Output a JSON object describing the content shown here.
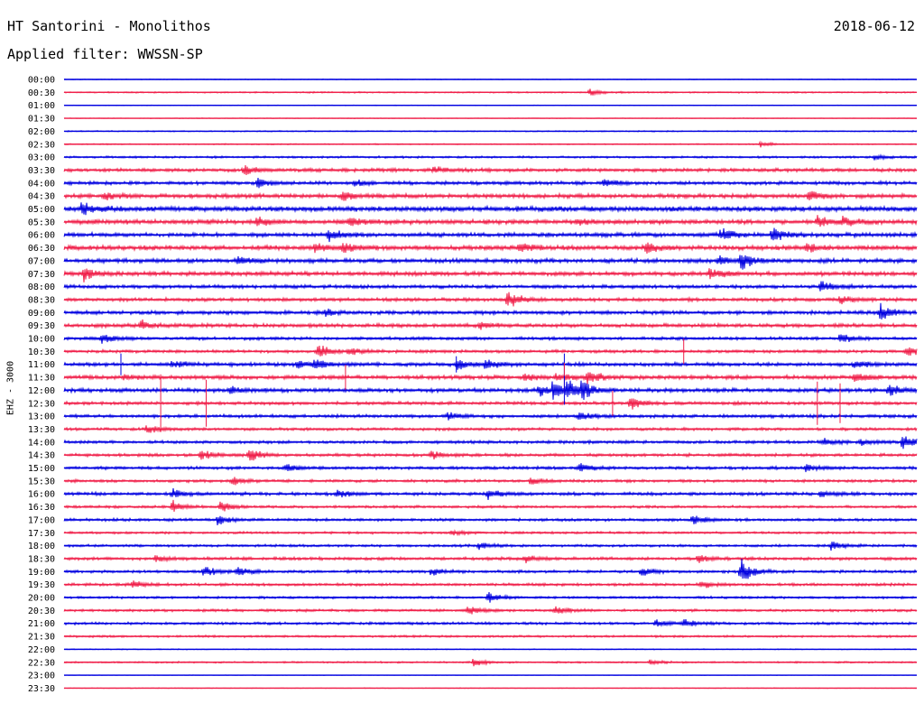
{
  "header": {
    "title": "HT Santorini - Monolithos",
    "date": "2018-06-12",
    "filter": "Applied filter: WWSSN-SP"
  },
  "channel_label": "EHZ - 3000",
  "colors": {
    "trace_a": "#0000e0",
    "trace_b": "#f0204a",
    "text": "#000000"
  },
  "chart_data": {
    "type": "line",
    "kind": "seismogram helicorder",
    "row_labels": [
      "00:00",
      "00:30",
      "01:00",
      "01:30",
      "02:00",
      "02:30",
      "03:00",
      "03:30",
      "04:00",
      "04:30",
      "05:00",
      "05:30",
      "06:00",
      "06:30",
      "07:00",
      "07:30",
      "08:00",
      "08:30",
      "09:00",
      "09:30",
      "10:00",
      "10:30",
      "11:00",
      "11:30",
      "12:00",
      "12:30",
      "13:00",
      "13:30",
      "14:00",
      "14:30",
      "15:00",
      "15:30",
      "16:00",
      "16:30",
      "17:00",
      "17:30",
      "18:00",
      "18:30",
      "19:00",
      "19:30",
      "20:00",
      "20:30",
      "21:00",
      "21:30",
      "22:00",
      "22:30",
      "23:00",
      "23:30"
    ],
    "row_duration_minutes": 30,
    "noise_level": [
      0.3,
      0.6,
      0.3,
      0.3,
      0.5,
      0.5,
      0.9,
      1.5,
      1.5,
      1.8,
      2.2,
      2.0,
      1.8,
      2.0,
      1.8,
      1.8,
      1.5,
      1.5,
      1.6,
      1.6,
      1.3,
      1.3,
      1.6,
      1.7,
      1.7,
      1.4,
      1.4,
      1.2,
      1.3,
      1.3,
      1.3,
      1.2,
      1.4,
      1.1,
      1.2,
      1.0,
      1.1,
      1.3,
      1.2,
      1.2,
      1.0,
      1.1,
      1.1,
      0.9,
      0.4,
      0.7,
      0.2,
      0.3
    ],
    "events": [
      {
        "row": 1,
        "minute": 18.5,
        "amp": 4
      },
      {
        "row": 5,
        "minute": 24.5,
        "amp": 3
      },
      {
        "row": 6,
        "minute": 28.5,
        "amp": 3
      },
      {
        "row": 7,
        "minute": 6.3,
        "amp": 5
      },
      {
        "row": 7,
        "minute": 13.0,
        "amp": 3
      },
      {
        "row": 8,
        "minute": 6.8,
        "amp": 5
      },
      {
        "row": 8,
        "minute": 10.2,
        "amp": 4
      },
      {
        "row": 8,
        "minute": 19.0,
        "amp": 4
      },
      {
        "row": 9,
        "minute": 1.4,
        "amp": 4
      },
      {
        "row": 9,
        "minute": 9.8,
        "amp": 5
      },
      {
        "row": 9,
        "minute": 26.2,
        "amp": 6
      },
      {
        "row": 10,
        "minute": 0.6,
        "amp": 7
      },
      {
        "row": 11,
        "minute": 6.8,
        "amp": 5
      },
      {
        "row": 11,
        "minute": 10.0,
        "amp": 5
      },
      {
        "row": 11,
        "minute": 18.0,
        "amp": 4
      },
      {
        "row": 11,
        "minute": 26.5,
        "amp": 5
      },
      {
        "row": 11,
        "minute": 27.4,
        "amp": 5
      },
      {
        "row": 12,
        "minute": 9.3,
        "amp": 6
      },
      {
        "row": 12,
        "minute": 23.1,
        "amp": 7
      },
      {
        "row": 12,
        "minute": 24.9,
        "amp": 9
      },
      {
        "row": 13,
        "minute": 8.8,
        "amp": 5
      },
      {
        "row": 13,
        "minute": 9.8,
        "amp": 6
      },
      {
        "row": 13,
        "minute": 16.0,
        "amp": 5
      },
      {
        "row": 13,
        "minute": 20.5,
        "amp": 5
      },
      {
        "row": 13,
        "minute": 26.1,
        "amp": 5
      },
      {
        "row": 14,
        "minute": 6.1,
        "amp": 4
      },
      {
        "row": 14,
        "minute": 23.0,
        "amp": 6
      },
      {
        "row": 14,
        "minute": 23.8,
        "amp": 10
      },
      {
        "row": 15,
        "minute": 0.7,
        "amp": 7
      },
      {
        "row": 15,
        "minute": 22.7,
        "amp": 6
      },
      {
        "row": 16,
        "minute": 26.6,
        "amp": 6
      },
      {
        "row": 17,
        "minute": 15.6,
        "amp": 10
      },
      {
        "row": 17,
        "minute": 27.3,
        "amp": 4
      },
      {
        "row": 18,
        "minute": 9.2,
        "amp": 4
      },
      {
        "row": 18,
        "minute": 28.7,
        "amp": 9
      },
      {
        "row": 19,
        "minute": 2.7,
        "amp": 5
      },
      {
        "row": 19,
        "minute": 14.6,
        "amp": 4
      },
      {
        "row": 20,
        "minute": 1.3,
        "amp": 6
      },
      {
        "row": 20,
        "minute": 27.3,
        "amp": 5
      },
      {
        "row": 21,
        "minute": 8.9,
        "amp": 8
      },
      {
        "row": 21,
        "minute": 10.0,
        "amp": 5
      },
      {
        "row": 21,
        "minute": 29.6,
        "amp": 6
      },
      {
        "row": 22,
        "minute": 3.8,
        "amp": 4
      },
      {
        "row": 22,
        "minute": 8.2,
        "amp": 4
      },
      {
        "row": 22,
        "minute": 8.8,
        "amp": 5
      },
      {
        "row": 22,
        "minute": 13.8,
        "amp": 5
      },
      {
        "row": 22,
        "minute": 14.8,
        "amp": 5
      },
      {
        "row": 22,
        "minute": 27.8,
        "amp": 4
      },
      {
        "row": 23,
        "minute": 2.1,
        "amp": 3
      },
      {
        "row": 23,
        "minute": 16.2,
        "amp": 4
      },
      {
        "row": 23,
        "minute": 17.3,
        "amp": 4
      },
      {
        "row": 23,
        "minute": 18.4,
        "amp": 7
      },
      {
        "row": 23,
        "minute": 27.8,
        "amp": 5
      },
      {
        "row": 24,
        "minute": 5.8,
        "amp": 4
      },
      {
        "row": 24,
        "minute": 16.7,
        "amp": 6
      },
      {
        "row": 24,
        "minute": 17.2,
        "amp": 9
      },
      {
        "row": 24,
        "minute": 17.7,
        "amp": 9
      },
      {
        "row": 24,
        "minute": 18.2,
        "amp": 9
      },
      {
        "row": 24,
        "minute": 29.0,
        "amp": 6
      },
      {
        "row": 25,
        "minute": 19.9,
        "amp": 7
      },
      {
        "row": 26,
        "minute": 13.5,
        "amp": 4
      },
      {
        "row": 26,
        "minute": 18.1,
        "amp": 5
      },
      {
        "row": 27,
        "minute": 2.9,
        "amp": 5
      },
      {
        "row": 28,
        "minute": 26.7,
        "amp": 4
      },
      {
        "row": 28,
        "minute": 28.0,
        "amp": 4
      },
      {
        "row": 28,
        "minute": 29.5,
        "amp": 8
      },
      {
        "row": 29,
        "minute": 4.8,
        "amp": 6
      },
      {
        "row": 29,
        "minute": 6.5,
        "amp": 8
      },
      {
        "row": 29,
        "minute": 12.9,
        "amp": 4
      },
      {
        "row": 30,
        "minute": 7.8,
        "amp": 4
      },
      {
        "row": 30,
        "minute": 18.1,
        "amp": 5
      },
      {
        "row": 30,
        "minute": 26.1,
        "amp": 4
      },
      {
        "row": 31,
        "minute": 5.9,
        "amp": 5
      },
      {
        "row": 31,
        "minute": 16.4,
        "amp": 4
      },
      {
        "row": 32,
        "minute": 3.8,
        "amp": 5
      },
      {
        "row": 32,
        "minute": 9.6,
        "amp": 4
      },
      {
        "row": 32,
        "minute": 14.9,
        "amp": 6
      },
      {
        "row": 32,
        "minute": 26.6,
        "amp": 4
      },
      {
        "row": 33,
        "minute": 3.8,
        "amp": 6
      },
      {
        "row": 33,
        "minute": 5.5,
        "amp": 6
      },
      {
        "row": 34,
        "minute": 5.4,
        "amp": 5
      },
      {
        "row": 34,
        "minute": 22.1,
        "amp": 6
      },
      {
        "row": 35,
        "minute": 13.6,
        "amp": 3
      },
      {
        "row": 36,
        "minute": 14.6,
        "amp": 4
      },
      {
        "row": 36,
        "minute": 27.0,
        "amp": 5
      },
      {
        "row": 37,
        "minute": 3.2,
        "amp": 4
      },
      {
        "row": 37,
        "minute": 16.2,
        "amp": 4
      },
      {
        "row": 37,
        "minute": 22.3,
        "amp": 5
      },
      {
        "row": 38,
        "minute": 4.9,
        "amp": 6
      },
      {
        "row": 38,
        "minute": 6.1,
        "amp": 5
      },
      {
        "row": 38,
        "minute": 12.9,
        "amp": 4
      },
      {
        "row": 38,
        "minute": 20.3,
        "amp": 5
      },
      {
        "row": 38,
        "minute": 23.8,
        "amp": 13
      },
      {
        "row": 39,
        "minute": 2.4,
        "amp": 4
      },
      {
        "row": 39,
        "minute": 22.4,
        "amp": 4
      },
      {
        "row": 40,
        "minute": 14.9,
        "amp": 6
      },
      {
        "row": 41,
        "minute": 14.2,
        "amp": 5
      },
      {
        "row": 41,
        "minute": 17.3,
        "amp": 5
      },
      {
        "row": 42,
        "minute": 20.8,
        "amp": 4
      },
      {
        "row": 42,
        "minute": 21.8,
        "amp": 4
      },
      {
        "row": 45,
        "minute": 14.4,
        "amp": 4
      },
      {
        "row": 45,
        "minute": 20.6,
        "amp": 3
      }
    ],
    "spikes": [
      {
        "row": 21,
        "minute": 21.8,
        "amp": 14
      },
      {
        "row": 22,
        "minute": 2.0,
        "amp": 12
      },
      {
        "row": 22,
        "minute": 13.8,
        "amp": 9
      },
      {
        "row": 22,
        "minute": 17.6,
        "amp": 12
      },
      {
        "row": 23,
        "minute": 17.6,
        "amp": 16
      },
      {
        "row": 23,
        "minute": 9.9,
        "amp": 14
      },
      {
        "row": 25,
        "minute": 3.4,
        "amp": 32
      },
      {
        "row": 25,
        "minute": 5.0,
        "amp": 26
      },
      {
        "row": 25,
        "minute": 19.3,
        "amp": 14
      },
      {
        "row": 25,
        "minute": 26.5,
        "amp": 24
      },
      {
        "row": 25,
        "minute": 27.3,
        "amp": 22
      },
      {
        "row": 24,
        "minute": 17.6,
        "amp": 16
      }
    ]
  }
}
